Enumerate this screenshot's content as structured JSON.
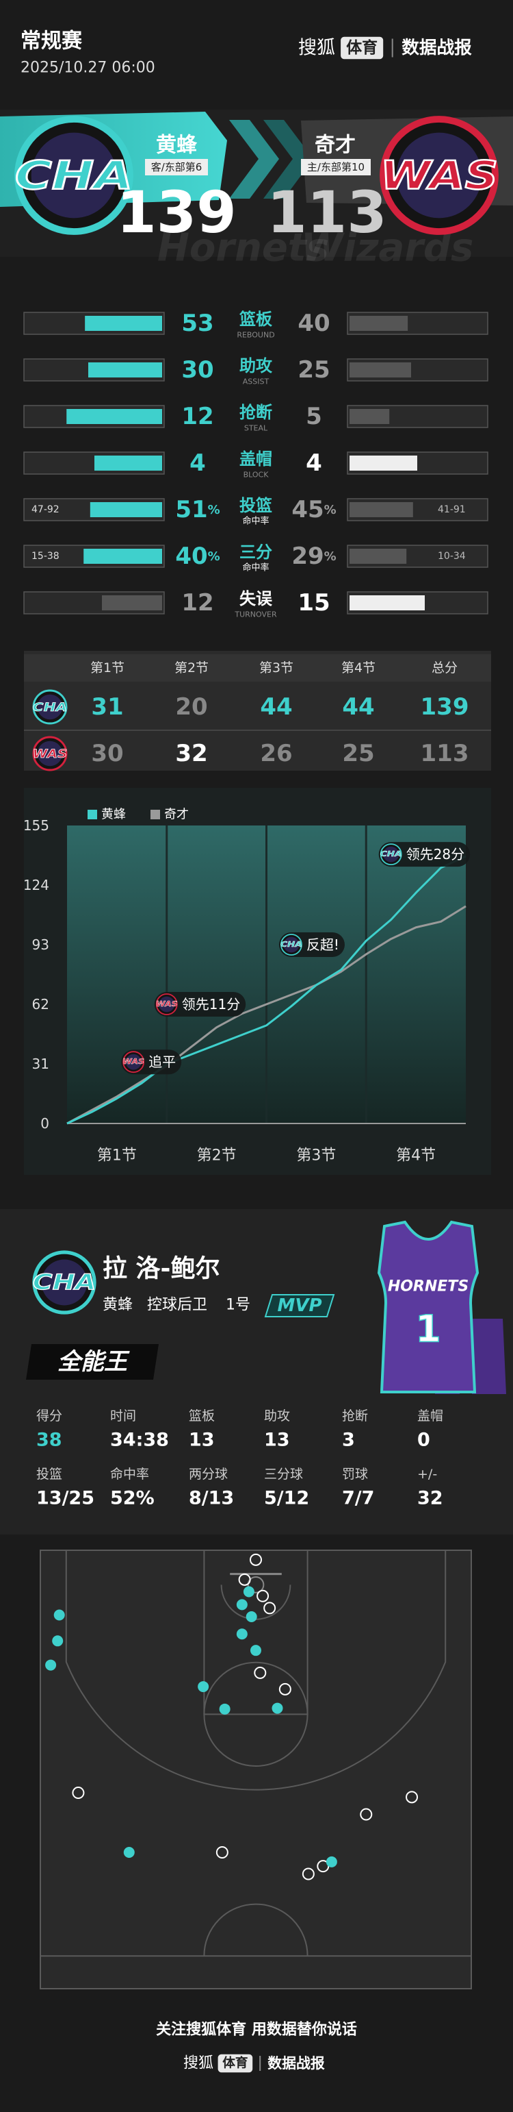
{
  "header": {
    "title": "常规赛",
    "datetime": "2025/10.27 06:00",
    "brand": "搜狐",
    "brand_tag": "体育",
    "report": "数据战报"
  },
  "teams": {
    "home": {
      "name": "黄蜂",
      "abbr": "CHA",
      "tag": "客/东部第6",
      "score": 139,
      "bg_name": "Hornets",
      "color": "#3fd0cc"
    },
    "away": {
      "name": "奇才",
      "abbr": "WAS",
      "tag": "主/东部第10",
      "score": 113,
      "bg_name": "Wizards",
      "color": "#d4213d"
    }
  },
  "stats": [
    {
      "label": "篮板",
      "sub": "REBOUND",
      "home": 53,
      "away": 40
    },
    {
      "label": "助攻",
      "sub": "ASSIST",
      "home": 30,
      "away": 25
    },
    {
      "label": "抢断",
      "sub": "STEAL",
      "home": 12,
      "away": 5
    },
    {
      "label": "盖帽",
      "sub": "BLOCK",
      "home": 4,
      "away": 4
    },
    {
      "label": "投篮",
      "sub": "命中率",
      "home": 51,
      "away": 45,
      "home_label": "51%",
      "away_label": "45%",
      "home_detail": "47-92",
      "away_detail": "41-91"
    },
    {
      "label": "三分",
      "sub": "命中率",
      "home": 40,
      "away": 29,
      "home_label": "40%",
      "away_label": "29%",
      "home_detail": "15-38",
      "away_detail": "10-34"
    },
    {
      "label": "失误",
      "sub": "TURNOVER",
      "home": 12,
      "away": 15
    }
  ],
  "quarters": {
    "headers": [
      "第1节",
      "第2节",
      "第3节",
      "第4节",
      "总分"
    ],
    "home": [
      31,
      20,
      44,
      44,
      139
    ],
    "away": [
      30,
      32,
      26,
      25,
      113
    ]
  },
  "chart_data": {
    "type": "line",
    "xlim": [
      0,
      48
    ],
    "ylim": [
      0,
      155
    ],
    "yticks": [
      0,
      31,
      62,
      93,
      124,
      155
    ],
    "grid": false,
    "xticks": [
      {
        "value": 6,
        "label": "第1节"
      },
      {
        "value": 18,
        "label": "第2节"
      },
      {
        "value": 30,
        "label": "第3节"
      },
      {
        "value": 42,
        "label": "第4节"
      }
    ],
    "x": [
      0,
      3,
      6,
      9,
      12,
      15,
      18,
      21,
      24,
      27,
      30,
      33,
      36,
      39,
      42,
      45,
      48
    ],
    "series": [
      {
        "name": "黄蜂",
        "color": "#3fd0cc",
        "values": [
          0,
          6,
          13,
          21,
          31,
          36,
          41,
          46,
          51,
          61,
          72,
          80,
          95,
          106,
          120,
          133,
          139
        ]
      },
      {
        "name": "奇才",
        "color": "#9a9a9a",
        "values": [
          0,
          7,
          14,
          22,
          30,
          40,
          50,
          57,
          62,
          67,
          72,
          79,
          88,
          96,
          102,
          105,
          113
        ]
      }
    ],
    "annotations": [
      {
        "text": "追平",
        "logo": "WAS",
        "x": 8,
        "y": 32
      },
      {
        "text": "领先11分",
        "logo": "WAS",
        "x": 12,
        "y": 62
      },
      {
        "text": "反超!",
        "logo": "CHA",
        "x": 27,
        "y": 93
      },
      {
        "text": "领先28分",
        "logo": "CHA",
        "x": 39,
        "y": 140
      }
    ]
  },
  "player": {
    "name": "拉 洛-鲍尔",
    "position": "控球后卫",
    "number": "1号",
    "badge": "MVP",
    "title": "全能王",
    "jersey_text": "HORNETS",
    "jersey_number": "1",
    "stats": [
      {
        "label": "得分",
        "value": 38
      },
      {
        "label": "时间",
        "value": "34:38"
      },
      {
        "label": "篮板",
        "value": 13
      },
      {
        "label": "助攻",
        "value": 13
      },
      {
        "label": "抢断",
        "value": 3
      },
      {
        "label": "盖帽",
        "value": 0
      },
      {
        "label": "投篮",
        "value": "13/25"
      },
      {
        "label": "命中率",
        "value": "52%"
      },
      {
        "label": "两分球",
        "value": "8/13"
      },
      {
        "label": "三分球",
        "value": "5/12"
      },
      {
        "label": "罚球",
        "value": "7/7"
      },
      {
        "label": "+/-",
        "value": 32
      }
    ]
  },
  "shot_chart": {
    "made": [
      {
        "x": -22.8,
        "y": 7.5
      },
      {
        "x": -23,
        "y": 10.5
      },
      {
        "x": -23.8,
        "y": 13.3
      },
      {
        "x": -1.6,
        "y": 6.3
      },
      {
        "x": -0.8,
        "y": 4.8
      },
      {
        "x": -0.5,
        "y": 7.7
      },
      {
        "x": -1.6,
        "y": 9.7
      },
      {
        "x": 0,
        "y": 11.6
      },
      {
        "x": -6.1,
        "y": 15.8
      },
      {
        "x": -3.6,
        "y": 18.4
      },
      {
        "x": 2.5,
        "y": 18.3
      },
      {
        "x": -14.7,
        "y": 35
      },
      {
        "x": 8.8,
        "y": 36.1
      }
    ],
    "missed": [
      {
        "x": 0,
        "y": 1.1
      },
      {
        "x": 1.6,
        "y": 6.7
      },
      {
        "x": 0.5,
        "y": 14.2
      },
      {
        "x": 3.4,
        "y": 16.1
      },
      {
        "x": -1.3,
        "y": 3.4
      },
      {
        "x": 0.8,
        "y": 5.3
      },
      {
        "x": -20.6,
        "y": 28.1
      },
      {
        "x": 18.1,
        "y": 28.6
      },
      {
        "x": 12.8,
        "y": 30.6
      },
      {
        "x": -3.9,
        "y": 35
      },
      {
        "x": 6.1,
        "y": 37.5
      },
      {
        "x": 7.8,
        "y": 36.6
      }
    ]
  },
  "footer": {
    "slogan": "关注搜狐体育 用数据替你说话",
    "brand": "搜狐",
    "brand_tag": "体育",
    "report": "数据战报"
  }
}
